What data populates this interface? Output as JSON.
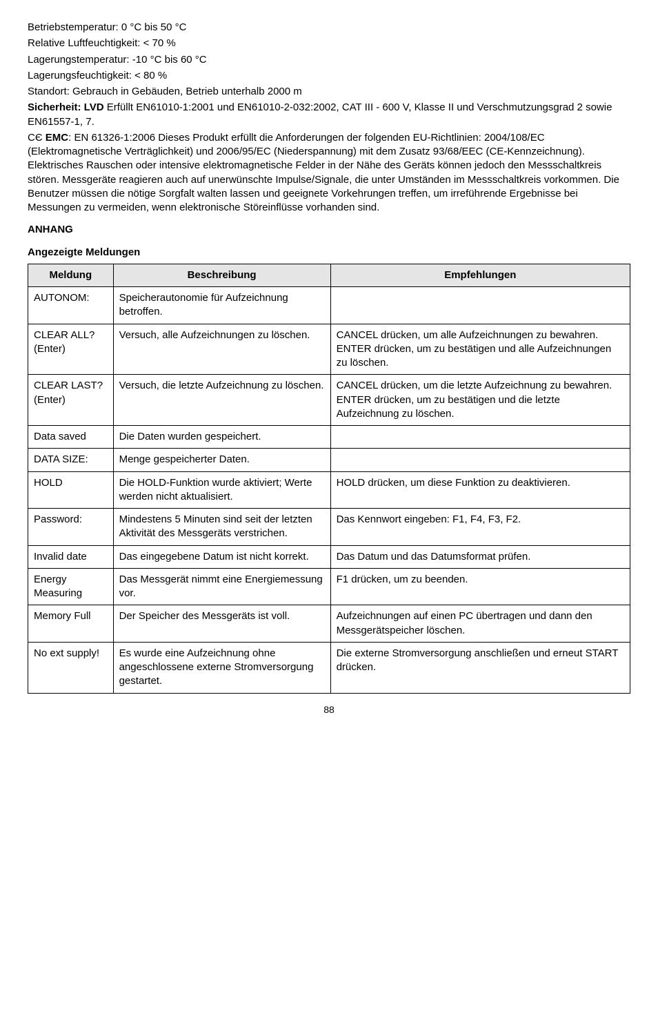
{
  "specs": {
    "line1": "Betriebstemperatur: 0 °C bis 50 °C",
    "line2": "Relative Luftfeuchtigkeit: < 70 %",
    "line3": "Lagerungstemperatur: -10 °C bis 60 °C",
    "line4": "Lagerungsfeuchtigkeit: < 80 %",
    "line5": "Standort: Gebrauch in Gebäuden, Betrieb unterhalb 2000 m"
  },
  "safety": {
    "prefix": "Sicherheit: LVD",
    "text": " Erfüllt EN61010-1:2001 und EN61010-2-032:2002, CAT III - 600 V, Klasse II und Verschmutzungsgrad 2 sowie EN61557-1, 7."
  },
  "emc": {
    "prefix": "EMC",
    "text": ": EN 61326-1:2006  Dieses Produkt erfüllt die Anforderungen der folgenden EU-Richtlinien: 2004/108/EC (Elektromagnetische Verträglichkeit) und 2006/95/EC (Niederspannung) mit dem Zusatz 93/68/EEC (CE-Kennzeichnung). Elektrisches Rauschen oder intensive elektromagnetische Felder in der Nähe des Geräts können jedoch den Messschaltkreis stören. Messgeräte reagieren auch auf unerwünschte Impulse/Signale, die unter Umständen im Messschaltkreis vorkommen. Die Benutzer müssen die nötige Sorgfalt walten lassen und geeignete Vorkehrungen treffen, um irreführende Ergebnisse bei Messungen zu vermeiden, wenn elektronische Störeinflüsse vorhanden sind."
  },
  "headings": {
    "anhang": "ANHANG",
    "sub": "Angezeigte Meldungen"
  },
  "table": {
    "headers": {
      "c1": "Meldung",
      "c2": "Beschreibung",
      "c3": "Empfehlungen"
    },
    "header_bg": "#e5e5e5",
    "rows": [
      {
        "c1": "AUTONOM:",
        "c2": "Speicherautonomie für Aufzeichnung betroffen.",
        "c3": ""
      },
      {
        "c1": "CLEAR ALL? (Enter)",
        "c2": "Versuch, alle Aufzeichnungen zu löschen.",
        "c3": "CANCEL drücken, um alle Aufzeichnungen zu bewahren. ENTER drücken, um zu bestätigen und alle Aufzeichnungen zu löschen."
      },
      {
        "c1": "CLEAR LAST? (Enter)",
        "c2": "Versuch, die letzte Aufzeichnung zu löschen.",
        "c3": "CANCEL drücken, um die letzte Aufzeichnung zu bewahren. ENTER drücken, um zu bestätigen und die letzte Aufzeichnung zu löschen."
      },
      {
        "c1": "Data saved",
        "c2": "Die Daten wurden gespeichert.",
        "c3": ""
      },
      {
        "c1": "DATA SIZE:",
        "c2": "Menge gespeicherter Daten.",
        "c3": ""
      },
      {
        "c1": "HOLD",
        "c2": "Die HOLD-Funktion wurde aktiviert; Werte werden nicht aktualisiert.",
        "c3": "HOLD drücken, um diese Funktion zu deaktivieren."
      },
      {
        "c1": "Password:",
        "c2": "Mindestens 5 Minuten sind seit der letzten Aktivität des Messgeräts verstrichen.",
        "c3": "Das Kennwort eingeben: F1, F4, F3, F2."
      },
      {
        "c1": "Invalid date",
        "c2": "Das eingegebene Datum ist nicht korrekt.",
        "c3": "Das Datum und das Datumsformat prüfen."
      },
      {
        "c1": "Energy Measuring",
        "c2": "Das Messgerät nimmt eine Energiemessung vor.",
        "c3": "F1 drücken, um zu beenden."
      },
      {
        "c1": "Memory Full",
        "c2": "Der Speicher des Messgeräts ist voll.",
        "c3": "Aufzeichnungen auf einen PC übertragen und dann den Messgerätspeicher löschen."
      },
      {
        "c1": "No ext supply!",
        "c2": "Es wurde eine Aufzeichnung ohne angeschlossene externe Stromversorgung gestartet.",
        "c3": "Die externe Stromversorgung anschließen und erneut START drücken."
      }
    ]
  },
  "page_number": "88"
}
